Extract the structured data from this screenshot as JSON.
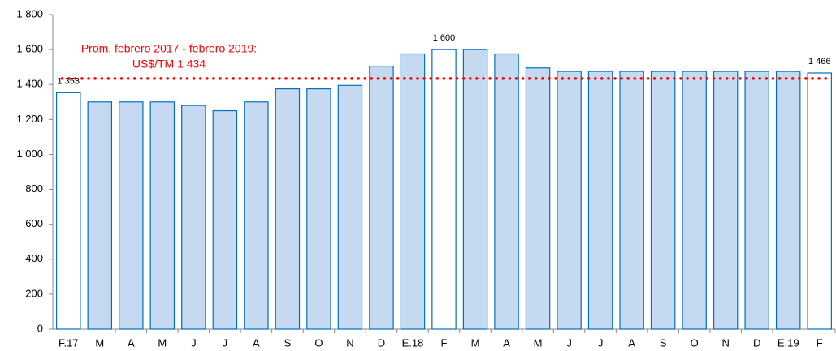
{
  "chart_data": {
    "type": "bar",
    "categories": [
      "F.17",
      "M",
      "A",
      "M",
      "J",
      "J",
      "A",
      "S",
      "O",
      "N",
      "D",
      "E.18",
      "F",
      "M",
      "A",
      "M",
      "J",
      "J",
      "A",
      "S",
      "O",
      "N",
      "D",
      "E.19",
      "F"
    ],
    "values": [
      1353,
      1300,
      1300,
      1300,
      1280,
      1250,
      1300,
      1375,
      1375,
      1395,
      1505,
      1575,
      1600,
      1600,
      1575,
      1495,
      1475,
      1475,
      1475,
      1475,
      1475,
      1475,
      1475,
      1475,
      1466
    ],
    "value_labels": [
      "1 353",
      null,
      null,
      null,
      null,
      null,
      null,
      null,
      null,
      null,
      null,
      null,
      "1 600",
      null,
      null,
      null,
      null,
      null,
      null,
      null,
      null,
      null,
      null,
      null,
      "1 466"
    ],
    "colors": [
      "#ffffff",
      "#c5d9f1",
      "#c5d9f1",
      "#c5d9f1",
      "#c5d9f1",
      "#c5d9f1",
      "#c5d9f1",
      "#c5d9f1",
      "#c5d9f1",
      "#c5d9f1",
      "#c5d9f1",
      "#c5d9f1",
      "#ffffff",
      "#c5d9f1",
      "#c5d9f1",
      "#c5d9f1",
      "#c5d9f1",
      "#c5d9f1",
      "#c5d9f1",
      "#c5d9f1",
      "#c5d9f1",
      "#c5d9f1",
      "#c5d9f1",
      "#c5d9f1",
      "#ffffff"
    ],
    "edge_color": "#0070c0",
    "ylim": [
      0,
      1800
    ],
    "yticks": [
      0,
      200,
      400,
      600,
      800,
      {
        "value": 1000,
        "label": "1 000"
      },
      {
        "value": 1200,
        "label": "1 200"
      },
      {
        "value": 1400,
        "label": "1 400"
      },
      {
        "value": 1600,
        "label": "1 600"
      },
      {
        "value": 1800,
        "label": "1 800"
      }
    ],
    "reference_line": {
      "value": 1434,
      "color": "#ff0000",
      "label_lines": [
        "Prom. febrero 2017 - febrero 2019:",
        "US$/TM 1 434"
      ]
    }
  }
}
